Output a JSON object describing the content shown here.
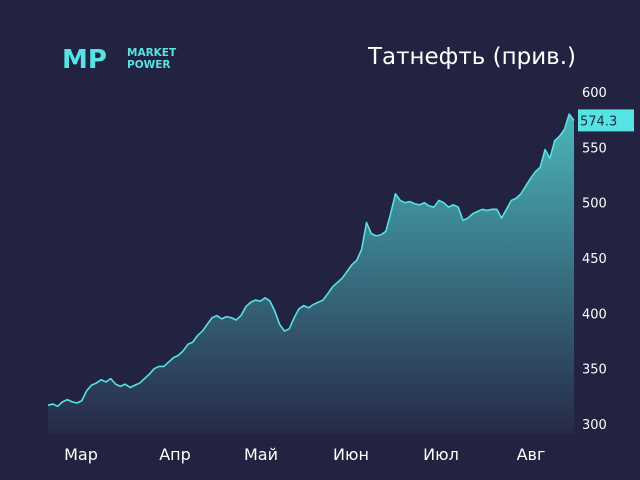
{
  "brand": {
    "logo_mark": "MP",
    "logo_line1": "MARKET",
    "logo_line2": "POWER",
    "accent_color": "#55e3e3"
  },
  "chart_data": {
    "type": "area",
    "title": "Татнефть (прив.)",
    "xlabel": "",
    "ylabel": "",
    "x_tick_labels": [
      "Мар",
      "Апр",
      "Май",
      "Июн",
      "Июл",
      "Авг"
    ],
    "y_ticks": [
      300,
      350,
      400,
      450,
      500,
      550,
      600
    ],
    "ylim": [
      290,
      605
    ],
    "grid": false,
    "last_value_label": "574.3",
    "colors": {
      "background": "#222241",
      "line": "#55e3e3",
      "fill_top": "#4ab5bb",
      "fill_bottom": "#262947"
    },
    "series": [
      {
        "values": [
          317,
          318,
          316,
          320,
          322,
          320,
          319,
          321,
          330,
          335,
          337,
          340,
          338,
          341,
          336,
          334,
          336,
          333,
          335,
          337,
          341,
          345,
          350,
          352,
          352,
          356,
          360,
          362,
          366,
          372,
          374,
          380,
          384,
          390,
          396,
          398,
          395,
          397,
          396,
          394,
          398,
          406,
          410,
          412,
          411,
          414,
          411,
          402,
          390,
          384,
          386,
          396,
          404,
          407,
          405,
          408,
          410,
          412,
          418,
          424,
          428,
          432,
          438,
          444,
          448,
          458,
          482,
          472,
          470,
          471,
          474,
          490,
          508,
          502,
          500,
          501,
          499,
          498,
          500,
          497,
          496,
          502,
          500,
          496,
          498,
          496,
          484,
          486,
          490,
          492,
          494,
          493,
          494,
          494,
          486,
          494,
          502,
          504,
          508,
          515,
          522,
          528,
          532,
          548,
          540,
          556,
          560,
          566,
          580,
          574.3
        ]
      }
    ]
  }
}
